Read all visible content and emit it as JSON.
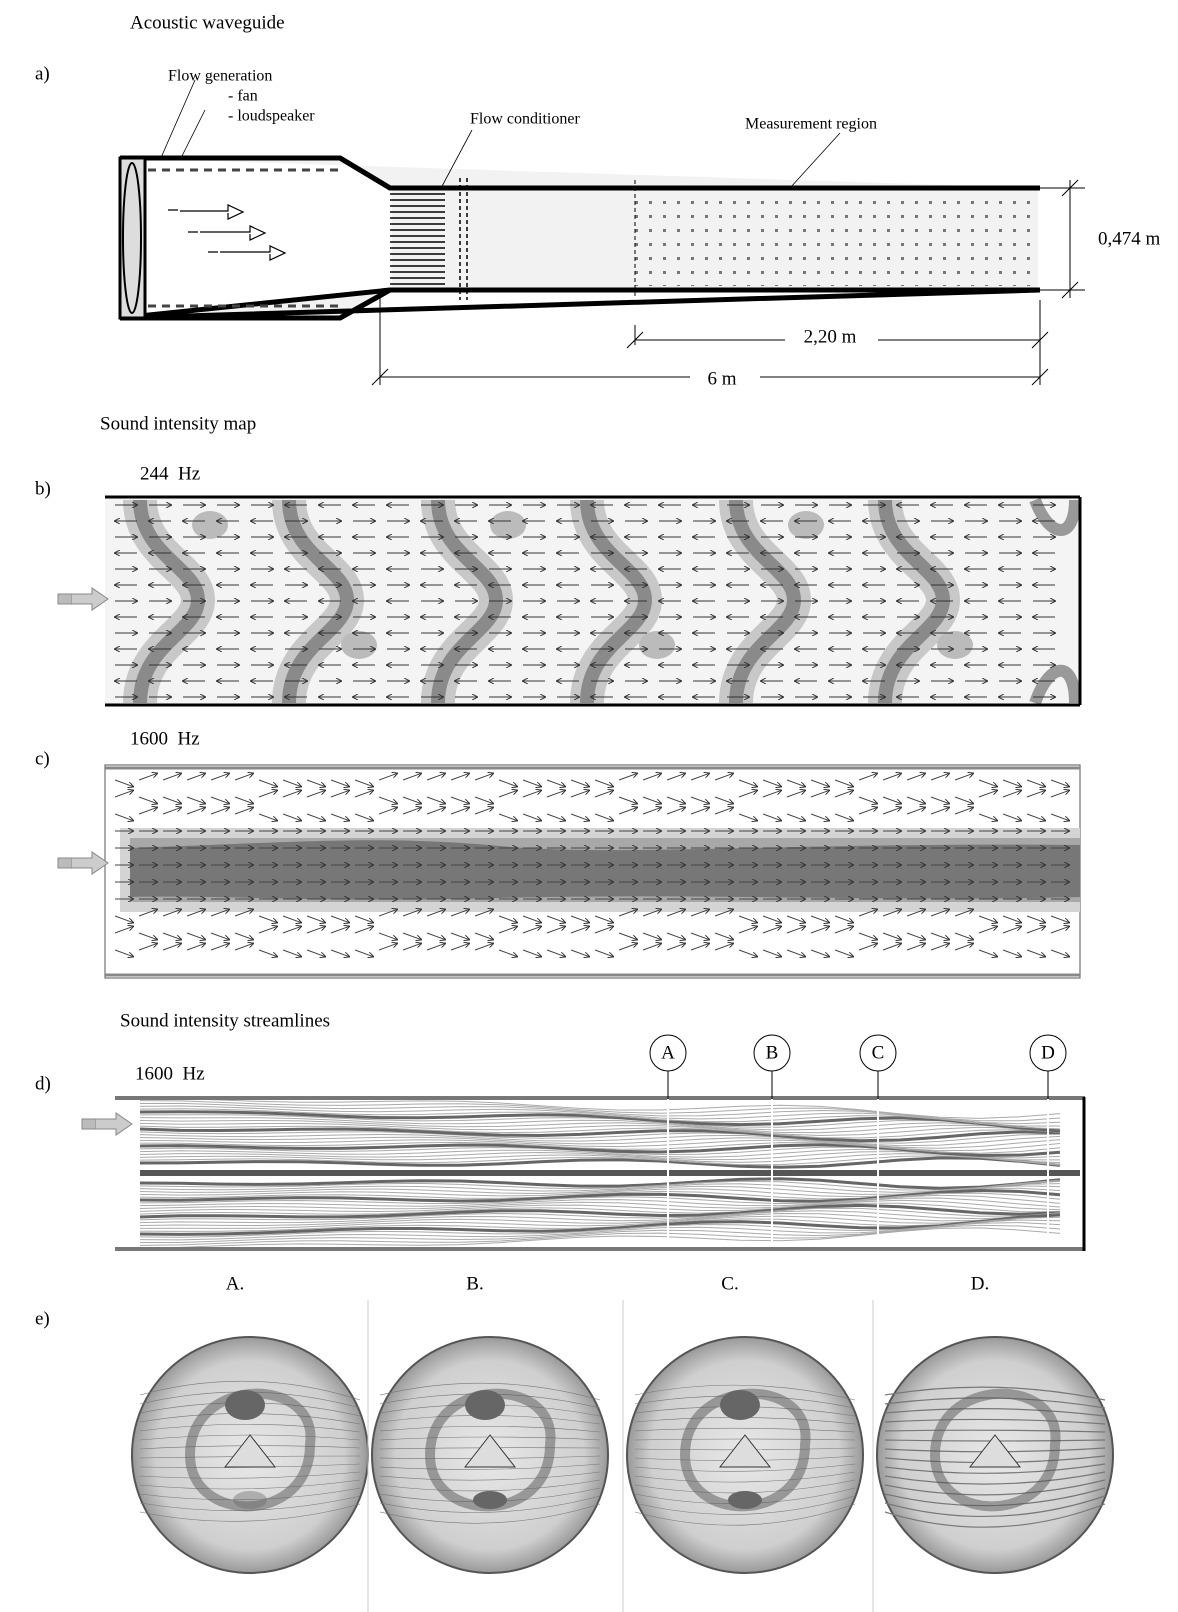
{
  "panel_a": {
    "title": "Acoustic waveguide",
    "label": "a)",
    "flow_generation": "Flow generation",
    "fan": "- fan",
    "loudspeaker": "- loudspeaker",
    "flow_conditioner": "Flow conditioner",
    "measurement_region": "Measurement region",
    "height_dim": "0,474 m",
    "measurement_length_dim": "2,20 m",
    "total_length_dim": "6 m"
  },
  "map_title": "Sound intensity map",
  "panel_b": {
    "label": "b)",
    "frequency": "244  Hz"
  },
  "panel_c": {
    "label": "c)",
    "frequency": "1600  Hz"
  },
  "streamlines_title": "Sound intensity streamlines",
  "panel_d": {
    "label": "d)",
    "frequency": "1600  Hz",
    "sections": [
      "A",
      "B",
      "C",
      "D"
    ]
  },
  "panel_e": {
    "label": "e)",
    "sections": [
      "A.",
      "B.",
      "C.",
      "D."
    ]
  }
}
